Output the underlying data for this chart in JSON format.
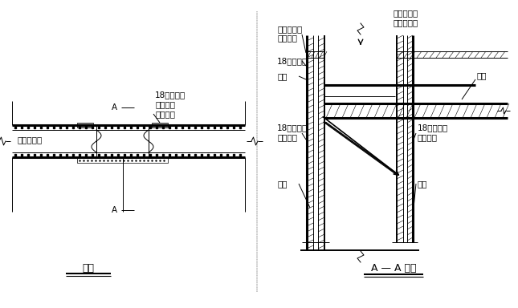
{
  "bg_color": "#ffffff",
  "line_color": "#000000",
  "title_left": "平面",
  "title_right": "A — A 剑面",
  "labels": {
    "left_wall": "外墙后浇带",
    "top_right_label1": "18厚多层板",
    "top_right_label2": "外封油沈",
    "top_right_label3": "木方垫块",
    "A_marker": "A",
    "section_top_left1": "封塑料布抗",
    "section_top_left2": "防水砂浆",
    "section_mid_left1": "18厚多层板",
    "section_mid_left2": "木方",
    "section_bot_left1": "18厚多层板",
    "section_bot_left2": "外封油沈",
    "section_bot_left3": "木方",
    "section_top_right1": "施工水、杂",
    "section_top_right2": "物掴落方向",
    "section_right_board": "楼板",
    "section_bot_right1": "18厚多层板",
    "section_bot_right2": "外封油沈",
    "section_bot_right3": "木方"
  }
}
